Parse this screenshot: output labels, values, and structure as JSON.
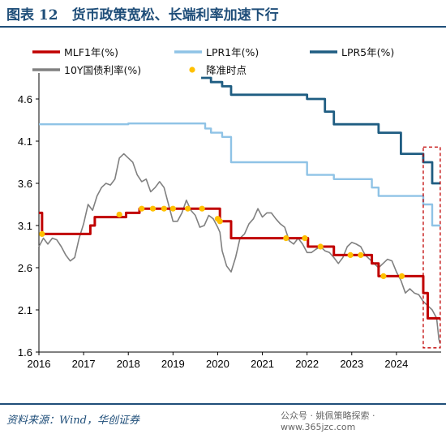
{
  "figure": {
    "title": "图表 12　货币政策宽松、长端利率加速下行",
    "source": "资料来源：Wind，华创证券",
    "watermark": "公众号 · 姚佩策略探索 · www.365jzc.com"
  },
  "colors": {
    "mlf": "#c00000",
    "lpr1": "#8fc3e6",
    "lpr5": "#1f5d82",
    "bond10y": "#808080",
    "cut": "#ffc000",
    "highlight": "#c00000",
    "frame": "#1f4e79"
  },
  "chart_data": {
    "type": "line",
    "title": "",
    "xlabel": "",
    "ylabel": "",
    "xlim": [
      2016.0,
      2025.0
    ],
    "ylim": [
      1.6,
      4.85
    ],
    "x_ticks": [
      "2016",
      "2017",
      "2018",
      "2019",
      "2020",
      "2021",
      "2022",
      "2023",
      "2024"
    ],
    "y_ticks": [
      "1.6",
      "2.1",
      "2.6",
      "3.1",
      "3.6",
      "4.1",
      "4.6"
    ],
    "legend": [
      "MLF1年(%)",
      "LPR1年(%)",
      "LPR5年(%)",
      "10Y国债利率(%)",
      "降准时点"
    ],
    "legend_position": "top",
    "highlight_box": {
      "x_from": 2024.6,
      "x_to": 2024.98,
      "y_from": 1.65,
      "y_to": 4.03
    },
    "series": [
      {
        "name": "MLF1年(%)",
        "style": "step",
        "points": [
          [
            2016.0,
            3.25
          ],
          [
            2016.07,
            3.0
          ],
          [
            2017.15,
            3.1
          ],
          [
            2017.25,
            3.2
          ],
          [
            2017.95,
            3.25
          ],
          [
            2018.25,
            3.3
          ],
          [
            2020.05,
            3.15
          ],
          [
            2020.3,
            2.95
          ],
          [
            2022.02,
            2.85
          ],
          [
            2022.6,
            2.75
          ],
          [
            2023.45,
            2.65
          ],
          [
            2023.6,
            2.5
          ],
          [
            2024.6,
            2.3
          ],
          [
            2024.7,
            2.0
          ],
          [
            2024.98,
            2.0
          ]
        ]
      },
      {
        "name": "LPR1年(%)",
        "style": "step",
        "points": [
          [
            2016.0,
            4.3
          ],
          [
            2017.25,
            4.3
          ],
          [
            2018.0,
            4.31
          ],
          [
            2019.63,
            4.31
          ],
          [
            2019.72,
            4.25
          ],
          [
            2019.85,
            4.2
          ],
          [
            2020.1,
            4.15
          ],
          [
            2020.3,
            3.85
          ],
          [
            2022.0,
            3.7
          ],
          [
            2022.6,
            3.65
          ],
          [
            2023.45,
            3.55
          ],
          [
            2023.6,
            3.45
          ],
          [
            2024.6,
            3.35
          ],
          [
            2024.8,
            3.1
          ],
          [
            2024.98,
            3.1
          ]
        ]
      },
      {
        "name": "LPR5年(%)",
        "style": "step",
        "points": [
          [
            2019.63,
            4.85
          ],
          [
            2019.72,
            4.85
          ],
          [
            2019.85,
            4.8
          ],
          [
            2020.1,
            4.75
          ],
          [
            2020.3,
            4.65
          ],
          [
            2022.0,
            4.6
          ],
          [
            2022.4,
            4.45
          ],
          [
            2022.6,
            4.3
          ],
          [
            2023.45,
            4.3
          ],
          [
            2023.6,
            4.2
          ],
          [
            2024.1,
            3.95
          ],
          [
            2024.6,
            3.85
          ],
          [
            2024.8,
            3.6
          ],
          [
            2024.98,
            3.6
          ]
        ]
      },
      {
        "name": "10Y国债利率(%)",
        "style": "line",
        "points": [
          [
            2016.0,
            2.85
          ],
          [
            2016.1,
            2.95
          ],
          [
            2016.2,
            2.88
          ],
          [
            2016.3,
            2.95
          ],
          [
            2016.4,
            2.93
          ],
          [
            2016.5,
            2.85
          ],
          [
            2016.6,
            2.75
          ],
          [
            2016.7,
            2.68
          ],
          [
            2016.8,
            2.72
          ],
          [
            2016.9,
            2.95
          ],
          [
            2017.0,
            3.12
          ],
          [
            2017.1,
            3.35
          ],
          [
            2017.2,
            3.28
          ],
          [
            2017.3,
            3.45
          ],
          [
            2017.4,
            3.55
          ],
          [
            2017.5,
            3.6
          ],
          [
            2017.6,
            3.58
          ],
          [
            2017.7,
            3.65
          ],
          [
            2017.8,
            3.9
          ],
          [
            2017.9,
            3.95
          ],
          [
            2018.0,
            3.9
          ],
          [
            2018.1,
            3.85
          ],
          [
            2018.2,
            3.7
          ],
          [
            2018.3,
            3.62
          ],
          [
            2018.4,
            3.65
          ],
          [
            2018.5,
            3.5
          ],
          [
            2018.6,
            3.55
          ],
          [
            2018.7,
            3.62
          ],
          [
            2018.8,
            3.55
          ],
          [
            2018.9,
            3.35
          ],
          [
            2019.0,
            3.15
          ],
          [
            2019.1,
            3.15
          ],
          [
            2019.2,
            3.25
          ],
          [
            2019.3,
            3.4
          ],
          [
            2019.4,
            3.28
          ],
          [
            2019.5,
            3.22
          ],
          [
            2019.6,
            3.08
          ],
          [
            2019.7,
            3.1
          ],
          [
            2019.8,
            3.22
          ],
          [
            2019.9,
            3.18
          ],
          [
            2020.0,
            3.08
          ],
          [
            2020.05,
            3.02
          ],
          [
            2020.1,
            2.8
          ],
          [
            2020.2,
            2.62
          ],
          [
            2020.3,
            2.55
          ],
          [
            2020.4,
            2.72
          ],
          [
            2020.5,
            2.95
          ],
          [
            2020.6,
            3.0
          ],
          [
            2020.7,
            3.12
          ],
          [
            2020.8,
            3.18
          ],
          [
            2020.9,
            3.3
          ],
          [
            2021.0,
            3.2
          ],
          [
            2021.1,
            3.25
          ],
          [
            2021.2,
            3.25
          ],
          [
            2021.3,
            3.18
          ],
          [
            2021.4,
            3.12
          ],
          [
            2021.5,
            3.08
          ],
          [
            2021.6,
            2.92
          ],
          [
            2021.7,
            2.88
          ],
          [
            2021.8,
            2.95
          ],
          [
            2021.9,
            2.88
          ],
          [
            2022.0,
            2.78
          ],
          [
            2022.1,
            2.78
          ],
          [
            2022.2,
            2.82
          ],
          [
            2022.3,
            2.85
          ],
          [
            2022.4,
            2.8
          ],
          [
            2022.5,
            2.78
          ],
          [
            2022.6,
            2.72
          ],
          [
            2022.7,
            2.65
          ],
          [
            2022.8,
            2.72
          ],
          [
            2022.9,
            2.85
          ],
          [
            2023.0,
            2.9
          ],
          [
            2023.1,
            2.88
          ],
          [
            2023.2,
            2.85
          ],
          [
            2023.3,
            2.75
          ],
          [
            2023.4,
            2.7
          ],
          [
            2023.5,
            2.65
          ],
          [
            2023.6,
            2.6
          ],
          [
            2023.7,
            2.65
          ],
          [
            2023.8,
            2.7
          ],
          [
            2023.9,
            2.68
          ],
          [
            2024.0,
            2.55
          ],
          [
            2024.1,
            2.45
          ],
          [
            2024.2,
            2.3
          ],
          [
            2024.3,
            2.35
          ],
          [
            2024.4,
            2.3
          ],
          [
            2024.5,
            2.28
          ],
          [
            2024.6,
            2.2
          ],
          [
            2024.7,
            2.15
          ],
          [
            2024.8,
            2.1
          ],
          [
            2024.9,
            2.0
          ],
          [
            2024.95,
            1.75
          ],
          [
            2024.98,
            1.7
          ]
        ]
      },
      {
        "name": "降准时点",
        "style": "marker",
        "points": [
          [
            2016.07,
            3.0
          ],
          [
            2017.8,
            3.23
          ],
          [
            2018.3,
            3.3
          ],
          [
            2018.55,
            3.3
          ],
          [
            2018.8,
            3.3
          ],
          [
            2019.0,
            3.3
          ],
          [
            2019.33,
            3.3
          ],
          [
            2019.65,
            3.3
          ],
          [
            2020.0,
            3.18
          ],
          [
            2020.05,
            3.15
          ],
          [
            2021.53,
            2.95
          ],
          [
            2021.95,
            2.95
          ],
          [
            2022.3,
            2.85
          ],
          [
            2022.97,
            2.75
          ],
          [
            2023.2,
            2.75
          ],
          [
            2023.71,
            2.5
          ],
          [
            2024.12,
            2.5
          ]
        ]
      }
    ]
  }
}
